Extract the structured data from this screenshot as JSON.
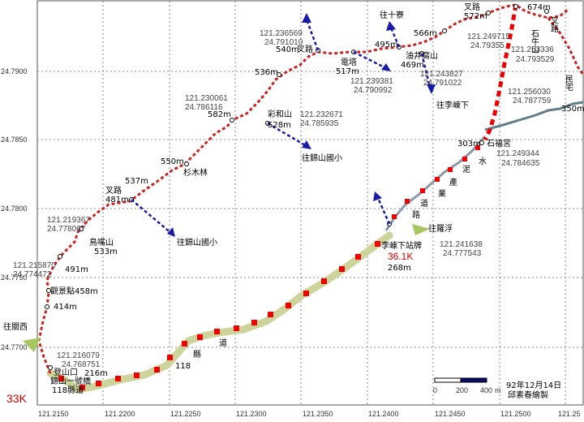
{
  "axes": {
    "lat_ticks": [
      "24.7900",
      "24.7850",
      "24.7800",
      "24.7750",
      "24.7700"
    ],
    "lon_ticks": [
      "121.2150",
      "121.2200",
      "121.2250",
      "121.2300",
      "121.2350",
      "121.2400",
      "121.2450",
      "121.2500",
      "121.25"
    ]
  },
  "waypoints": [
    {
      "text": "登山口"
    },
    {
      "text": "錦山一號橋"
    },
    {
      "text": "118縣道"
    },
    {
      "text": "216m"
    },
    {
      "text": "414m"
    },
    {
      "text": "觀景點458m"
    },
    {
      "text": "491m"
    },
    {
      "text": "鳥嘴山"
    },
    {
      "text": "533m"
    },
    {
      "text": "叉路"
    },
    {
      "text": "481m"
    },
    {
      "text": "537m"
    },
    {
      "text": "杉木林"
    },
    {
      "text": "550m"
    },
    {
      "text": "582m"
    },
    {
      "text": "彩和山"
    },
    {
      "text": "528m"
    },
    {
      "text": "536m"
    },
    {
      "text": "540m"
    },
    {
      "text": "叉路"
    },
    {
      "text": "電塔"
    },
    {
      "text": "517m"
    },
    {
      "text": "495m"
    },
    {
      "text": "566m"
    },
    {
      "text": "油井窩山"
    },
    {
      "text": "469m"
    },
    {
      "text": "叉路"
    },
    {
      "text": "572m"
    },
    {
      "text": "674m"
    },
    {
      "text": "石牛山"
    },
    {
      "text": "叉路"
    },
    {
      "text": "民宅"
    },
    {
      "text": "350m"
    },
    {
      "text": "303m"
    },
    {
      "text": "石福宮"
    },
    {
      "text": "李崠下站牌"
    },
    {
      "text": "268m"
    }
  ],
  "coords": [
    {
      "lon": "121.216079",
      "lat": "24.768751"
    },
    {
      "lon": "121.215870",
      "lat": "24.774472"
    },
    {
      "lon": "121.219367",
      "lat": "24.778067"
    },
    {
      "lon": "121.230061",
      "lat": "24.786116"
    },
    {
      "lon": "121.232671",
      "lat": "24.785935"
    },
    {
      "lon": "121.236569",
      "lat": "24.791010"
    },
    {
      "lon": "121.239381",
      "lat": "24.790992"
    },
    {
      "lon": "121.243827",
      "lat": "24.791022"
    },
    {
      "lon": "121.249715",
      "lat": "24.79355"
    },
    {
      "lon": "121.253336",
      "lat": "24.793529"
    },
    {
      "lon": "121.256030",
      "lat": "24.787759"
    },
    {
      "lon": "121.249344",
      "lat": "24.784635"
    },
    {
      "lon": "121.241638",
      "lat": "24.777543"
    }
  ],
  "directions": [
    {
      "text": "往關西"
    },
    {
      "text": "往錦山國小"
    },
    {
      "text": "往錦山國小"
    },
    {
      "text": "往十寮"
    },
    {
      "text": "往李崠下"
    },
    {
      "text": "往羅浮"
    }
  ],
  "road_chars": [
    "縣",
    "道",
    "產",
    "業",
    "泥",
    "水",
    "道",
    "路"
  ],
  "distances": {
    "start": "33K",
    "end": "36.1K"
  },
  "scale": {
    "ticks": [
      "0",
      "200",
      "400"
    ],
    "unit": "m"
  },
  "credit": {
    "date": "92年12月14日",
    "author": "邱素春繪製"
  },
  "colors": {
    "trail": "#cc2222",
    "road_118": "#ccd49c",
    "road_marker": "#ee0000",
    "paved": "#607d8b",
    "arrow": "#1a1aa8"
  }
}
